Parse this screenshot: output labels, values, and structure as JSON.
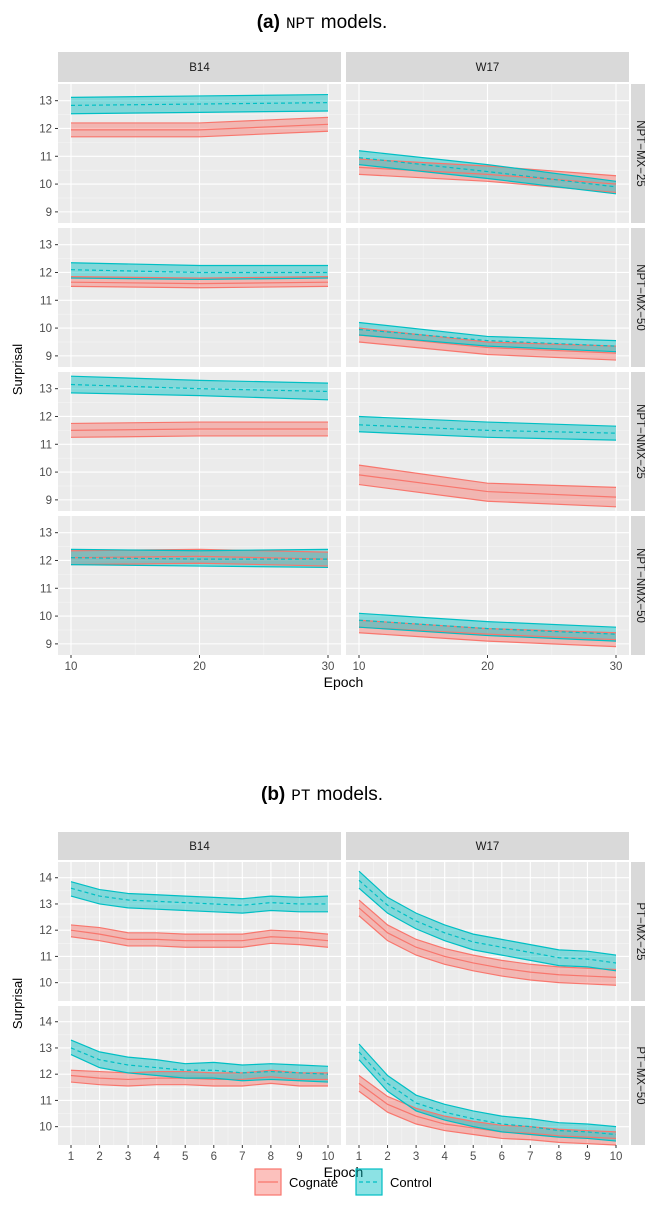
{
  "figures": [
    {
      "label": "(a)",
      "code": "NPT",
      "suffix": "models."
    },
    {
      "label": "(b)",
      "code": "PT",
      "suffix": "models."
    }
  ],
  "colors": {
    "cognate_line": "#F8766D",
    "cognate_fill": "#F8766D",
    "control_line": "#00BFC4",
    "control_fill": "#00BFC4",
    "panel_bg": "#EBEBEB",
    "strip_bg": "#D9D9D9"
  },
  "legend": {
    "items": [
      "Cognate",
      "Control"
    ]
  },
  "chart_data": [
    {
      "type": "line",
      "title": "NPT models.",
      "xlabel": "Epoch",
      "ylabel": "Surprisal",
      "columns": [
        "B14",
        "W17"
      ],
      "rows": [
        "NPT−MX−25",
        "NPT−MX−50",
        "NPT−NMX−25",
        "NPT−NMX−50"
      ],
      "x": [
        10,
        20,
        30
      ],
      "x_ticks": [
        10,
        20,
        30
      ],
      "ylim": [
        8.6,
        13.6
      ],
      "y_ticks": [
        9,
        10,
        11,
        12,
        13
      ],
      "series_names": [
        "Cognate",
        "Control"
      ],
      "panels": [
        {
          "row": "NPT−MX−25",
          "col": "B14",
          "series": [
            {
              "name": "Cognate",
              "mean": [
                11.95,
                11.95,
                12.15
              ],
              "lower": [
                11.7,
                11.7,
                11.9
              ],
              "upper": [
                12.2,
                12.2,
                12.4
              ]
            },
            {
              "name": "Control",
              "mean": [
                12.83,
                12.88,
                12.93
              ],
              "lower": [
                12.53,
                12.58,
                12.63
              ],
              "upper": [
                13.12,
                13.17,
                13.22
              ]
            }
          ]
        },
        {
          "row": "NPT−MX−25",
          "col": "W17",
          "series": [
            {
              "name": "Cognate",
              "mean": [
                10.6,
                10.35,
                10.0
              ],
              "lower": [
                10.35,
                10.1,
                9.7
              ],
              "upper": [
                10.9,
                10.65,
                10.3
              ]
            },
            {
              "name": "Control",
              "mean": [
                10.95,
                10.45,
                9.9
              ],
              "lower": [
                10.7,
                10.2,
                9.65
              ],
              "upper": [
                11.2,
                10.7,
                10.1
              ]
            }
          ]
        },
        {
          "row": "NPT−MX−50",
          "col": "B14",
          "series": [
            {
              "name": "Cognate",
              "mean": [
                11.65,
                11.6,
                11.65
              ],
              "lower": [
                11.5,
                11.45,
                11.5
              ],
              "upper": [
                11.85,
                11.8,
                11.85
              ]
            },
            {
              "name": "Control",
              "mean": [
                12.1,
                12.0,
                12.0
              ],
              "lower": [
                11.8,
                11.75,
                11.8
              ],
              "upper": [
                12.35,
                12.25,
                12.25
              ]
            }
          ]
        },
        {
          "row": "NPT−MX−50",
          "col": "W17",
          "series": [
            {
              "name": "Cognate",
              "mean": [
                9.75,
                9.3,
                9.1
              ],
              "lower": [
                9.5,
                9.05,
                8.85
              ],
              "upper": [
                10.0,
                9.5,
                9.35
              ]
            },
            {
              "name": "Control",
              "mean": [
                9.95,
                9.55,
                9.35
              ],
              "lower": [
                9.75,
                9.35,
                9.15
              ],
              "upper": [
                10.2,
                9.7,
                9.55
              ]
            }
          ]
        },
        {
          "row": "NPT−NMX−25",
          "col": "B14",
          "series": [
            {
              "name": "Cognate",
              "mean": [
                11.5,
                11.55,
                11.55
              ],
              "lower": [
                11.25,
                11.3,
                11.3
              ],
              "upper": [
                11.75,
                11.8,
                11.8
              ]
            },
            {
              "name": "Control",
              "mean": [
                13.15,
                13.0,
                12.9
              ],
              "lower": [
                12.85,
                12.75,
                12.6
              ],
              "upper": [
                13.45,
                13.3,
                13.2
              ]
            }
          ]
        },
        {
          "row": "NPT−NMX−25",
          "col": "W17",
          "series": [
            {
              "name": "Cognate",
              "mean": [
                9.9,
                9.3,
                9.1
              ],
              "lower": [
                9.55,
                8.95,
                8.75
              ],
              "upper": [
                10.25,
                9.6,
                9.45
              ]
            },
            {
              "name": "Control",
              "mean": [
                11.7,
                11.5,
                11.4
              ],
              "lower": [
                11.45,
                11.25,
                11.15
              ],
              "upper": [
                12.0,
                11.8,
                11.65
              ]
            }
          ]
        },
        {
          "row": "NPT−NMX−50",
          "col": "B14",
          "series": [
            {
              "name": "Cognate",
              "mean": [
                12.1,
                12.15,
                12.05
              ],
              "lower": [
                11.85,
                11.9,
                11.8
              ],
              "upper": [
                12.35,
                12.4,
                12.3
              ]
            },
            {
              "name": "Control",
              "mean": [
                12.1,
                12.05,
                12.05
              ],
              "lower": [
                11.85,
                11.8,
                11.75
              ],
              "upper": [
                12.4,
                12.35,
                12.4
              ]
            }
          ]
        },
        {
          "row": "NPT−NMX−50",
          "col": "W17",
          "series": [
            {
              "name": "Cognate",
              "mean": [
                9.6,
                9.35,
                9.15
              ],
              "lower": [
                9.4,
                9.1,
                8.9
              ],
              "upper": [
                9.85,
                9.55,
                9.4
              ]
            },
            {
              "name": "Control",
              "mean": [
                9.85,
                9.55,
                9.35
              ],
              "lower": [
                9.6,
                9.3,
                9.1
              ],
              "upper": [
                10.1,
                9.8,
                9.6
              ]
            }
          ]
        }
      ]
    },
    {
      "type": "line",
      "title": "PT models.",
      "xlabel": "Epoch",
      "ylabel": "Surprisal",
      "columns": [
        "B14",
        "W17"
      ],
      "rows": [
        "PT−MX−25",
        "PT−MX−50"
      ],
      "x": [
        1,
        2,
        3,
        4,
        5,
        6,
        7,
        8,
        9,
        10
      ],
      "x_ticks": [
        1,
        2,
        3,
        4,
        5,
        6,
        7,
        8,
        9,
        10
      ],
      "ylim": [
        9.3,
        14.6
      ],
      "y_ticks": [
        10,
        11,
        12,
        13,
        14
      ],
      "series_names": [
        "Cognate",
        "Control"
      ],
      "panels": [
        {
          "row": "PT−MX−25",
          "col": "B14",
          "series": [
            {
              "name": "Cognate",
              "mean": [
                12.0,
                11.85,
                11.65,
                11.65,
                11.6,
                11.6,
                11.6,
                11.75,
                11.7,
                11.6
              ],
              "lower": [
                11.75,
                11.6,
                11.4,
                11.4,
                11.35,
                11.35,
                11.35,
                11.5,
                11.45,
                11.35
              ],
              "upper": [
                12.2,
                12.1,
                11.9,
                11.9,
                11.85,
                11.85,
                11.85,
                12.0,
                11.95,
                11.85
              ]
            },
            {
              "name": "Control",
              "mean": [
                13.6,
                13.3,
                13.15,
                13.1,
                13.05,
                13.0,
                12.95,
                13.05,
                13.0,
                13.0
              ],
              "lower": [
                13.3,
                13.0,
                12.85,
                12.8,
                12.75,
                12.7,
                12.65,
                12.75,
                12.7,
                12.7
              ],
              "upper": [
                13.85,
                13.55,
                13.4,
                13.35,
                13.3,
                13.25,
                13.2,
                13.3,
                13.25,
                13.3
              ]
            }
          ]
        },
        {
          "row": "PT−MX−25",
          "col": "W17",
          "series": [
            {
              "name": "Cognate",
              "mean": [
                12.85,
                11.9,
                11.35,
                11.0,
                10.75,
                10.55,
                10.4,
                10.3,
                10.25,
                10.2
              ],
              "lower": [
                12.55,
                11.6,
                11.05,
                10.7,
                10.45,
                10.25,
                10.1,
                10.0,
                9.95,
                9.9
              ],
              "upper": [
                13.15,
                12.2,
                11.65,
                11.3,
                11.05,
                10.85,
                10.7,
                10.6,
                10.55,
                10.5
              ]
            },
            {
              "name": "Control",
              "mean": [
                13.9,
                12.95,
                12.35,
                11.9,
                11.55,
                11.35,
                11.15,
                10.95,
                10.9,
                10.75
              ],
              "lower": [
                13.6,
                12.65,
                12.05,
                11.6,
                11.25,
                11.05,
                10.85,
                10.65,
                10.6,
                10.45
              ],
              "upper": [
                14.25,
                13.25,
                12.65,
                12.2,
                11.85,
                11.65,
                11.45,
                11.25,
                11.2,
                11.05
              ]
            }
          ]
        },
        {
          "row": "PT−MX−50",
          "col": "B14",
          "series": [
            {
              "name": "Cognate",
              "mean": [
                11.95,
                11.85,
                11.8,
                11.85,
                11.85,
                11.8,
                11.8,
                11.9,
                11.8,
                11.8
              ],
              "lower": [
                11.7,
                11.6,
                11.55,
                11.6,
                11.6,
                11.55,
                11.55,
                11.65,
                11.55,
                11.55
              ],
              "upper": [
                12.15,
                12.1,
                12.05,
                12.1,
                12.1,
                12.05,
                12.05,
                12.15,
                12.05,
                12.05
              ]
            },
            {
              "name": "Control",
              "mean": [
                13.0,
                12.55,
                12.35,
                12.25,
                12.15,
                12.15,
                12.05,
                12.1,
                12.05,
                12.0
              ],
              "lower": [
                12.75,
                12.25,
                12.05,
                11.95,
                11.85,
                11.85,
                11.75,
                11.8,
                11.75,
                11.7
              ],
              "upper": [
                13.3,
                12.85,
                12.65,
                12.55,
                12.4,
                12.45,
                12.35,
                12.4,
                12.35,
                12.3
              ]
            }
          ]
        },
        {
          "row": "PT−MX−50",
          "col": "W17",
          "series": [
            {
              "name": "Cognate",
              "mean": [
                11.65,
                10.85,
                10.4,
                10.1,
                9.95,
                9.8,
                9.75,
                9.65,
                9.6,
                9.55
              ],
              "lower": [
                11.35,
                10.55,
                10.1,
                9.85,
                9.7,
                9.55,
                9.5,
                9.4,
                9.35,
                9.3
              ],
              "upper": [
                11.95,
                11.15,
                10.7,
                10.4,
                10.2,
                10.05,
                10.0,
                9.9,
                9.85,
                9.8
              ]
            },
            {
              "name": "Control",
              "mean": [
                12.85,
                11.65,
                10.9,
                10.55,
                10.3,
                10.1,
                10.0,
                9.85,
                9.8,
                9.7
              ],
              "lower": [
                12.55,
                11.35,
                10.6,
                10.25,
                10.0,
                9.8,
                9.7,
                9.6,
                9.55,
                9.45
              ],
              "upper": [
                13.15,
                11.95,
                11.2,
                10.85,
                10.6,
                10.4,
                10.3,
                10.15,
                10.1,
                10.0
              ]
            }
          ]
        }
      ]
    }
  ]
}
